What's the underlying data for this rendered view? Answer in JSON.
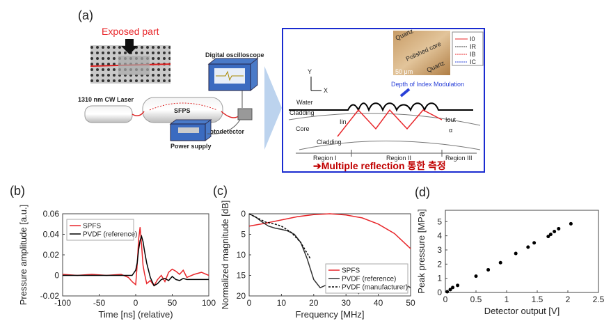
{
  "diagram": {
    "panel_label": "(a)",
    "exposed_label": "Exposed part",
    "laser": "1310 nm CW Laser",
    "sfps": "SFPS",
    "oscilloscope": "Digital oscilloscope",
    "photodetector": "Photodetector",
    "power_supply": "Power supply",
    "inset": {
      "axis_y": "Y",
      "axis_x": "X",
      "water": "Water",
      "cladding_top": "Cladding",
      "core": "Core",
      "cladding_bottom": "Cladding",
      "region_1": "Region I",
      "region_2": "Region II",
      "region_3": "Region III",
      "depth_label": "Depth of Index Modulation",
      "quartz_top": "Quartz",
      "polished_core": "Polished core",
      "quartz_bottom": "Quartz",
      "scale_bar": "50 μm",
      "i_in": "Iin",
      "i_out": "Iout",
      "alpha": "α",
      "legend": [
        "I0",
        "IR",
        "IB",
        "IC"
      ],
      "caption": "➔Multiple reflection 통한 측정"
    }
  },
  "chart_data": [
    {
      "type": "line",
      "panel_label": "(b)",
      "xlabel": "Time [ns] (relative)",
      "ylabel": "Pressure amplitude [a.u.]",
      "xlim": [
        -100,
        100
      ],
      "xticks": [
        -100,
        -50,
        0,
        50,
        100
      ],
      "ylim": [
        -0.02,
        0.06
      ],
      "yticks": [
        -0.02,
        0,
        0.02,
        0.04,
        0.06
      ],
      "legend": "upper left",
      "x": [
        -100,
        -80,
        -60,
        -40,
        -20,
        -10,
        -5,
        0,
        2,
        4,
        6,
        8,
        10,
        12,
        15,
        20,
        25,
        30,
        35,
        40,
        45,
        50,
        55,
        60,
        65,
        70,
        80,
        90,
        100
      ],
      "series": [
        {
          "name": "SPFS",
          "color": "#e8262a",
          "values": [
            0.001,
            0,
            0.001,
            0,
            0.001,
            -0.002,
            -0.006,
            -0.009,
            0.01,
            0.035,
            0.047,
            0.03,
            0.01,
            0.002,
            -0.008,
            -0.005,
            -0.01,
            -0.004,
            0,
            -0.006,
            0.003,
            0.006,
            0.004,
            0.001,
            0.005,
            -0.002,
            0.001,
            0.003,
            0
          ]
        },
        {
          "name": "PVDF (reference)",
          "color": "#000000",
          "values": [
            0,
            0,
            0,
            0,
            0,
            0,
            0,
            0.005,
            0.012,
            0.025,
            0.034,
            0.038,
            0.033,
            0.024,
            0.012,
            -0.002,
            -0.01,
            -0.008,
            -0.004,
            -0.003,
            -0.005,
            -0.001,
            -0.004,
            -0.005,
            -0.003,
            -0.004,
            -0.004,
            -0.004,
            -0.004
          ]
        }
      ]
    },
    {
      "type": "line",
      "panel_label": "(c)",
      "xlabel": "Frequency [MHz]",
      "ylabel": "Normalized magnitude [dB]",
      "xlim": [
        0,
        50
      ],
      "xticks": [
        0,
        10,
        20,
        30,
        40,
        50
      ],
      "ylim": [
        0,
        20
      ],
      "y_inverted": true,
      "yticks": [
        0,
        5,
        10,
        15,
        20
      ],
      "legend": "lower right",
      "series": [
        {
          "name": "SPFS",
          "color": "#e8262a",
          "x": [
            0,
            5,
            10,
            15,
            20,
            25,
            30,
            35,
            40,
            45,
            50
          ],
          "values": [
            3,
            2.3,
            1.5,
            0.7,
            0.2,
            0,
            0.3,
            1,
            2.5,
            4.8,
            8.5
          ]
        },
        {
          "name": "PVDF (reference)",
          "color": "#333333",
          "x": [
            0,
            2,
            4,
            6,
            8,
            10,
            12,
            14,
            16,
            18,
            20,
            22,
            24,
            26,
            28,
            30,
            32,
            34,
            36,
            38,
            40,
            42,
            44,
            46,
            48,
            50
          ],
          "values": [
            0,
            0.8,
            2,
            3,
            3.5,
            3.8,
            4.2,
            5,
            7,
            11,
            16,
            18,
            17.3,
            17.5,
            18,
            17,
            17.5,
            19.5,
            null,
            18,
            16.8,
            18,
            null,
            null,
            17,
            18
          ]
        },
        {
          "name": "PVDF (manufacturer)",
          "color": "#000000",
          "dash": true,
          "x": [
            0,
            3,
            5,
            8,
            10,
            13,
            16,
            19
          ],
          "values": [
            0,
            1.2,
            2,
            2.5,
            3,
            4.5,
            7,
            11
          ]
        }
      ]
    },
    {
      "type": "scatter",
      "panel_label": "(d)",
      "xlabel": "Detector output [V]",
      "ylabel": "Peak pressure [MPa]",
      "xlim": [
        0,
        2.5
      ],
      "xticks": [
        0,
        0.5,
        1,
        1.5,
        2,
        2.5
      ],
      "ylim": [
        0,
        5.8
      ],
      "yticks": [
        0,
        1,
        2,
        3,
        4,
        5
      ],
      "color": "#000000",
      "x": [
        0.03,
        0.08,
        0.12,
        0.2,
        0.5,
        0.7,
        0.9,
        1.15,
        1.35,
        1.45,
        1.68,
        1.72,
        1.78,
        1.85,
        2.05
      ],
      "values": [
        0.05,
        0.2,
        0.35,
        0.5,
        1.15,
        1.6,
        2.1,
        2.75,
        3.2,
        3.5,
        3.95,
        4.1,
        4.3,
        4.5,
        4.85
      ]
    }
  ]
}
